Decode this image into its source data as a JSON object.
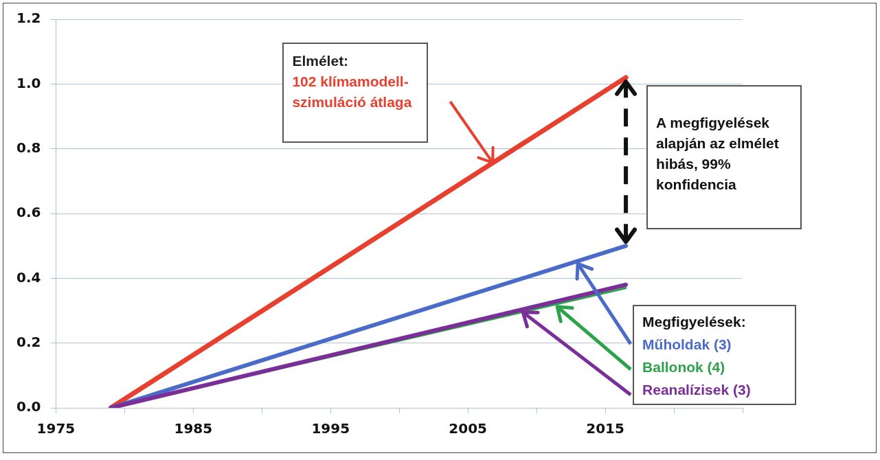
{
  "chart_data": {
    "type": "line",
    "x": [
      1979,
      2016.5
    ],
    "series": [
      {
        "name": "102 klímamodell-szimuláció átlaga",
        "color": "#e8402e",
        "values": [
          0,
          1.02
        ]
      },
      {
        "name": "Műholdak (3)",
        "color": "#4a6cc8",
        "values": [
          0,
          0.5
        ]
      },
      {
        "name": "Ballonok (4)",
        "color": "#2ca24a",
        "values": [
          0,
          0.37
        ]
      },
      {
        "name": "Reanalízisek (3)",
        "color": "#7a2e98",
        "values": [
          0,
          0.38
        ]
      }
    ],
    "xlim": [
      1975,
      2025
    ],
    "xticks": [
      1975,
      {
        "value": 1980,
        "label": null
      },
      1985,
      {
        "value": 1990,
        "label": null
      },
      1995,
      {
        "value": 2000,
        "label": null
      },
      2005,
      {
        "value": 2010,
        "label": null
      },
      2015,
      {
        "value": 2020,
        "label": null
      },
      {
        "value": 2025,
        "label": null
      }
    ],
    "ylim": [
      0,
      1.2
    ],
    "yticks": [
      {
        "value": 0,
        "label": "0.0"
      },
      {
        "value": 0.2,
        "label": "0.2"
      },
      {
        "value": 0.4,
        "label": "0.4"
      },
      {
        "value": 0.6,
        "label": "0.6"
      },
      {
        "value": 0.8,
        "label": "0.8"
      },
      {
        "value": 1,
        "label": "1.0"
      },
      {
        "value": 1.2,
        "label": "1.2"
      }
    ],
    "grid": "y",
    "legend": "bottom right",
    "marker": "none",
    "line_style": "solid",
    "legend_title": "Megfigyelések:",
    "annotations": [
      "Elmélet:",
      "A megfigyelések alapján az elmélet hibás, 99% konfidencia"
    ]
  }
}
